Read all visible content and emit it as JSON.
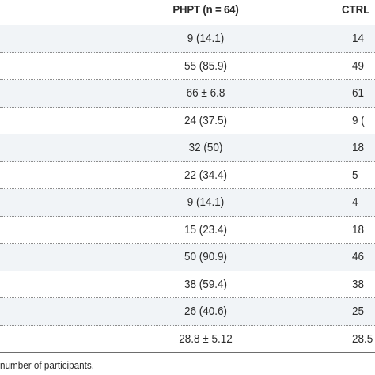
{
  "table": {
    "headers": {
      "phpt": "PHPT (n = 64)",
      "ctrl": "CTRL"
    },
    "rows": [
      {
        "phpt": "9 (14.1)",
        "ctrl": "14"
      },
      {
        "phpt": "55 (85.9)",
        "ctrl": "49"
      },
      {
        "phpt": "66 ± 6.8",
        "ctrl": "61"
      },
      {
        "phpt": "24 (37.5)",
        "ctrl": "9 ("
      },
      {
        "phpt": "32 (50)",
        "ctrl": "18"
      },
      {
        "phpt": "22 (34.4)",
        "ctrl": "5"
      },
      {
        "phpt": "9 (14.1)",
        "ctrl": "4"
      },
      {
        "phpt": "15 (23.4)",
        "ctrl": "18"
      },
      {
        "phpt": "50 (90.9)",
        "ctrl": "46"
      },
      {
        "phpt": "38 (59.4)",
        "ctrl": "38"
      },
      {
        "phpt": "26 (40.6)",
        "ctrl": "25"
      },
      {
        "phpt": "28.8 ± 5.12",
        "ctrl": "28.5"
      }
    ]
  },
  "footnote": "number of participants."
}
